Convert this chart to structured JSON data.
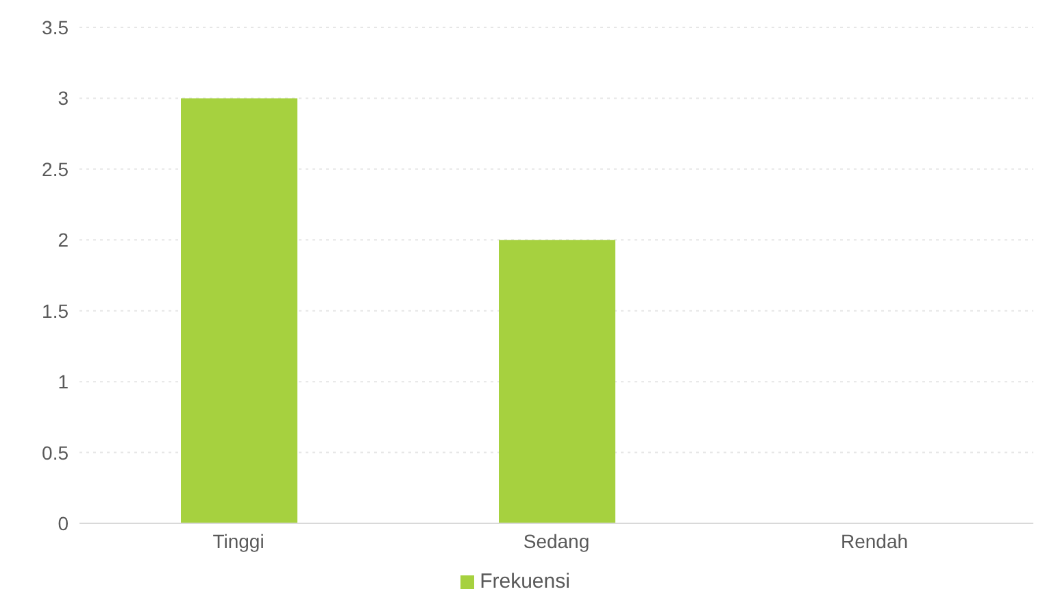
{
  "chart_data": {
    "type": "bar",
    "categories": [
      "Tinggi",
      "Sedang",
      "Rendah"
    ],
    "series": [
      {
        "name": "Frekuensi",
        "color": "#a6d13f",
        "values": [
          3,
          2,
          0
        ]
      }
    ],
    "ylim": [
      0,
      3.5
    ],
    "yticks": [
      0,
      0.5,
      1,
      1.5,
      2,
      2.5,
      3,
      3.5
    ],
    "grid": "y",
    "legend": "bottom"
  }
}
